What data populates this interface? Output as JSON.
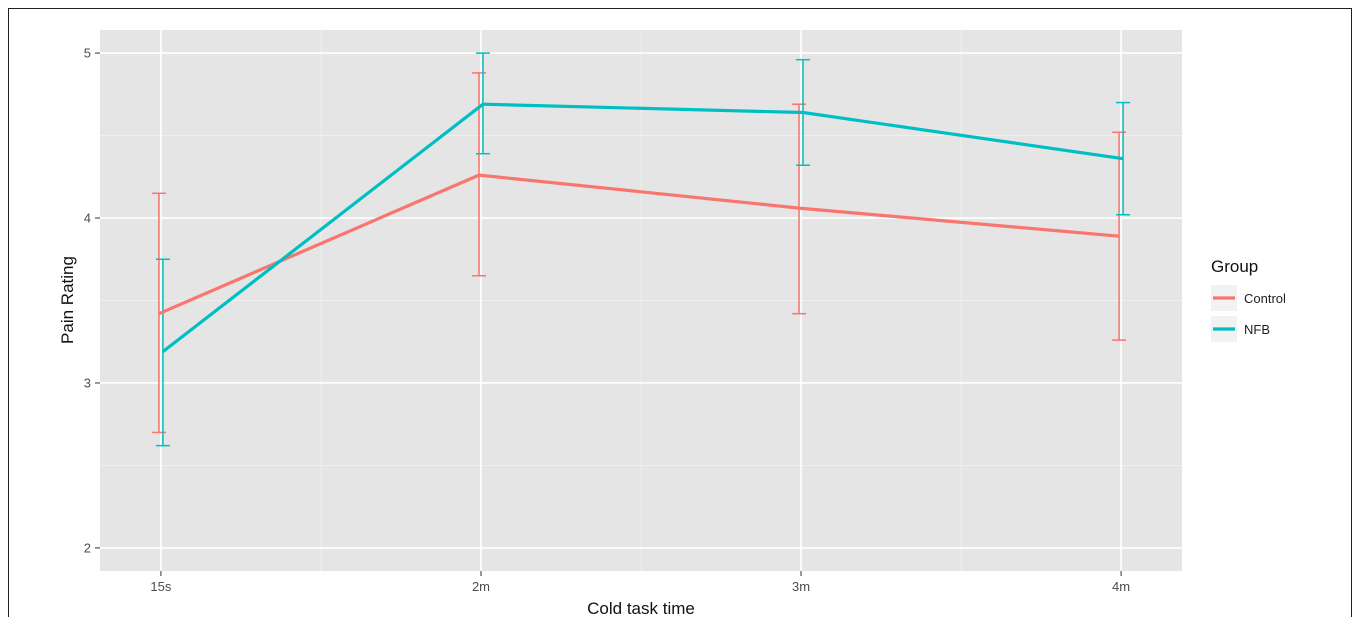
{
  "chart_data": {
    "type": "line",
    "title": "",
    "xlabel": "Cold task time",
    "ylabel": "Pain Rating",
    "categories": [
      "15s",
      "2m",
      "3m",
      "4m"
    ],
    "ylim": [
      1.86,
      5.14
    ],
    "yticks": [
      2,
      3,
      4,
      5
    ],
    "grid": true,
    "legend": {
      "title": "Group",
      "placement": "right"
    },
    "series": [
      {
        "name": "Control",
        "color": "#F8766D",
        "values": [
          3.42,
          4.26,
          4.06,
          3.89
        ],
        "lower": [
          2.7,
          3.65,
          3.42,
          3.26
        ],
        "upper": [
          4.15,
          4.88,
          4.69,
          4.52
        ]
      },
      {
        "name": "NFB",
        "color": "#00BFC4",
        "values": [
          3.19,
          4.69,
          4.64,
          4.36
        ],
        "lower": [
          2.62,
          4.39,
          4.32,
          4.02
        ],
        "upper": [
          3.75,
          5.0,
          4.96,
          4.7
        ]
      }
    ]
  }
}
